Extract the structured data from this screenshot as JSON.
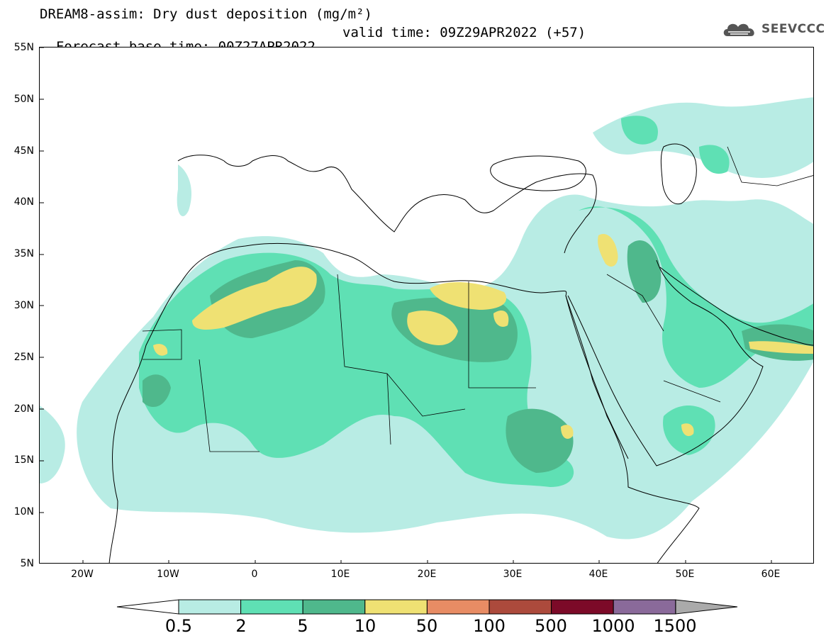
{
  "title": {
    "line1": "DREAM8-assim: Dry dust deposition (mg/m²)",
    "base_time": "Forecast base time: 00Z27APR2022",
    "valid_time": "valid time: 09Z29APR2022 (+57)"
  },
  "logo": {
    "text": "SEEVCCC",
    "icon": "cloud-icon"
  },
  "map": {
    "extent": {
      "lon": [
        -25,
        65
      ],
      "lat": [
        5,
        55
      ]
    },
    "lat_labels": [
      "55N",
      "50N",
      "45N",
      "40N",
      "35N",
      "30N",
      "25N",
      "20N",
      "15N",
      "10N",
      "5N"
    ],
    "lon_labels": [
      "20W",
      "10W",
      "0",
      "10E",
      "20E",
      "30E",
      "40E",
      "50E",
      "60E"
    ]
  },
  "colorbar": {
    "levels": [
      "0.5",
      "2",
      "5",
      "10",
      "50",
      "100",
      "500",
      "1000",
      "1500"
    ],
    "colors": [
      "#b8ece4",
      "#5fe0b4",
      "#4fb88c",
      "#efe173",
      "#e88c64",
      "#ac4a3c",
      "#7c0a28",
      "#8a6a9a"
    ],
    "under_color": "#ffffff",
    "over_color": "#aaaaaa"
  }
}
